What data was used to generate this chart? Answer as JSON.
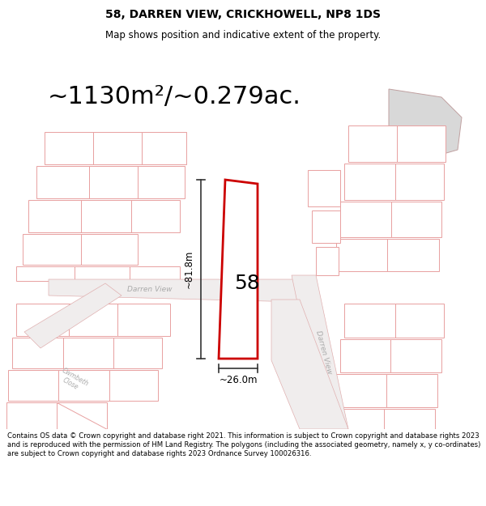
{
  "title_line1": "58, DARREN VIEW, CRICKHOWELL, NP8 1DS",
  "title_line2": "Map shows position and indicative extent of the property.",
  "area_text": "~1130m²/~0.279ac.",
  "footer_text": "Contains OS data © Crown copyright and database right 2021. This information is subject to Crown copyright and database rights 2023 and is reproduced with the permission of HM Land Registry. The polygons (including the associated geometry, namely x, y co-ordinates) are subject to Crown copyright and database rights 2023 Ordnance Survey 100026316.",
  "map_bg": "#faf6f6",
  "parcel_fill": "#ffffff",
  "parcel_edge": "#e8a0a0",
  "subject_fill": "#ffffff",
  "subject_edge": "#cc0000",
  "gray_parcel_fill": "#d8d8d8",
  "gray_parcel_edge": "#c0a0a0",
  "road_color": "#f0eded",
  "road_edge": "#e0b0b0",
  "road_label_color": "#aaaaaa",
  "dim_color": "#333333",
  "label_color": "#333333",
  "dim_width": "~26.0m",
  "dim_height": "~81.8m",
  "number_label": "58",
  "road_label1": "Darren View",
  "road_label2": "Darren View",
  "road_label3": "Cwmbeth\nClose"
}
